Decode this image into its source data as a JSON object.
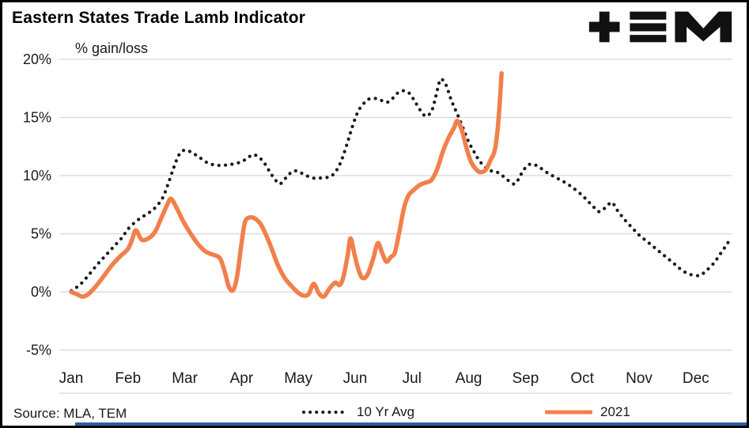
{
  "header": {
    "title": "Eastern States Trade Lamb Indicator",
    "ylabel": "% gain/loss",
    "logo_name": "TEM"
  },
  "footer": {
    "source": "Source: MLA, TEM"
  },
  "colors": {
    "grid": "#d6d6d6",
    "text": "#1a1a1a",
    "avg_line": "#1a1a1a",
    "line_2021": "#f2804c",
    "accent_bar": "#2e5fa3",
    "logo": "#111111"
  },
  "chart_data": {
    "type": "line",
    "title": "Eastern States Trade Lamb Indicator",
    "ylabel": "% gain/loss",
    "xlabel": "",
    "ylim": [
      -5,
      20
    ],
    "yticks": [
      20,
      15,
      10,
      5,
      0,
      -5
    ],
    "ytick_labels": [
      "20%",
      "15%",
      "10%",
      "5%",
      "0%",
      "-5%"
    ],
    "x_categories": [
      "Jan",
      "Feb",
      "Mar",
      "Apr",
      "May",
      "Jun",
      "Jul",
      "Aug",
      "Sep",
      "Oct",
      "Nov",
      "Dec"
    ],
    "grid": true,
    "legend_position": "bottom",
    "x_unit": "month_index_0_is_jan",
    "series": [
      {
        "name": "10 Yr Avg",
        "style": "dotted",
        "color": "#1a1a1a",
        "points": [
          [
            0,
            0.1
          ],
          [
            0.15,
            0.6
          ],
          [
            0.3,
            1.4
          ],
          [
            0.45,
            2.3
          ],
          [
            0.6,
            3.1
          ],
          [
            0.75,
            3.9
          ],
          [
            0.9,
            4.7
          ],
          [
            1.0,
            5.4
          ],
          [
            1.15,
            6.1
          ],
          [
            1.3,
            6.6
          ],
          [
            1.45,
            7.1
          ],
          [
            1.6,
            8.0
          ],
          [
            1.7,
            9.2
          ],
          [
            1.8,
            10.6
          ],
          [
            1.9,
            11.8
          ],
          [
            2.0,
            12.2
          ],
          [
            2.12,
            12.0
          ],
          [
            2.25,
            11.6
          ],
          [
            2.4,
            11.1
          ],
          [
            2.55,
            10.9
          ],
          [
            2.7,
            10.9
          ],
          [
            2.85,
            11.0
          ],
          [
            3.0,
            11.2
          ],
          [
            3.1,
            11.5
          ],
          [
            3.2,
            11.8
          ],
          [
            3.3,
            11.6
          ],
          [
            3.4,
            11.1
          ],
          [
            3.5,
            10.3
          ],
          [
            3.6,
            9.6
          ],
          [
            3.68,
            9.3
          ],
          [
            3.78,
            9.8
          ],
          [
            3.88,
            10.3
          ],
          [
            3.98,
            10.4
          ],
          [
            4.1,
            10.1
          ],
          [
            4.25,
            9.8
          ],
          [
            4.4,
            9.8
          ],
          [
            4.55,
            9.9
          ],
          [
            4.65,
            10.3
          ],
          [
            4.75,
            11.2
          ],
          [
            4.85,
            12.6
          ],
          [
            4.95,
            14.2
          ],
          [
            5.05,
            15.5
          ],
          [
            5.15,
            16.2
          ],
          [
            5.25,
            16.6
          ],
          [
            5.4,
            16.6
          ],
          [
            5.55,
            16.3
          ],
          [
            5.65,
            16.6
          ],
          [
            5.75,
            17.1
          ],
          [
            5.85,
            17.3
          ],
          [
            5.95,
            17.1
          ],
          [
            6.05,
            16.4
          ],
          [
            6.15,
            15.6
          ],
          [
            6.25,
            15.1
          ],
          [
            6.35,
            15.6
          ],
          [
            6.42,
            16.8
          ],
          [
            6.48,
            18.0
          ],
          [
            6.52,
            18.3
          ],
          [
            6.6,
            17.8
          ],
          [
            6.7,
            16.4
          ],
          [
            6.8,
            15.3
          ],
          [
            6.9,
            14.1
          ],
          [
            7.0,
            12.9
          ],
          [
            7.1,
            12.0
          ],
          [
            7.2,
            11.2
          ],
          [
            7.35,
            10.5
          ],
          [
            7.5,
            10.3
          ],
          [
            7.62,
            9.9
          ],
          [
            7.72,
            9.5
          ],
          [
            7.82,
            9.3
          ],
          [
            7.92,
            10.1
          ],
          [
            8.02,
            10.8
          ],
          [
            8.12,
            11.0
          ],
          [
            8.25,
            10.7
          ],
          [
            8.4,
            10.2
          ],
          [
            8.55,
            9.8
          ],
          [
            8.7,
            9.4
          ],
          [
            8.85,
            8.9
          ],
          [
            9.0,
            8.3
          ],
          [
            9.1,
            7.8
          ],
          [
            9.2,
            7.3
          ],
          [
            9.3,
            6.9
          ],
          [
            9.42,
            7.3
          ],
          [
            9.52,
            7.7
          ],
          [
            9.62,
            7.0
          ],
          [
            9.75,
            6.2
          ],
          [
            9.88,
            5.5
          ],
          [
            10.0,
            4.9
          ],
          [
            10.15,
            4.3
          ],
          [
            10.3,
            3.7
          ],
          [
            10.45,
            3.1
          ],
          [
            10.6,
            2.5
          ],
          [
            10.72,
            2.0
          ],
          [
            10.85,
            1.6
          ],
          [
            11.0,
            1.4
          ],
          [
            11.1,
            1.5
          ],
          [
            11.2,
            1.9
          ],
          [
            11.32,
            2.5
          ],
          [
            11.42,
            3.2
          ],
          [
            11.52,
            3.9
          ],
          [
            11.6,
            4.5
          ]
        ]
      },
      {
        "name": "2021",
        "style": "solid",
        "color": "#f2804c",
        "points": [
          [
            0,
            0.0
          ],
          [
            0.1,
            -0.2
          ],
          [
            0.2,
            -0.4
          ],
          [
            0.3,
            -0.2
          ],
          [
            0.42,
            0.4
          ],
          [
            0.55,
            1.2
          ],
          [
            0.7,
            2.2
          ],
          [
            0.85,
            3.0
          ],
          [
            1.0,
            3.7
          ],
          [
            1.08,
            4.6
          ],
          [
            1.14,
            5.3
          ],
          [
            1.24,
            4.5
          ],
          [
            1.36,
            4.6
          ],
          [
            1.48,
            5.2
          ],
          [
            1.6,
            6.5
          ],
          [
            1.7,
            7.6
          ],
          [
            1.76,
            8.0
          ],
          [
            1.86,
            7.2
          ],
          [
            1.96,
            6.2
          ],
          [
            2.08,
            5.2
          ],
          [
            2.22,
            4.2
          ],
          [
            2.36,
            3.5
          ],
          [
            2.5,
            3.2
          ],
          [
            2.62,
            2.9
          ],
          [
            2.7,
            1.8
          ],
          [
            2.78,
            0.4
          ],
          [
            2.86,
            0.2
          ],
          [
            2.93,
            1.6
          ],
          [
            3.0,
            4.2
          ],
          [
            3.06,
            6.0
          ],
          [
            3.14,
            6.4
          ],
          [
            3.24,
            6.3
          ],
          [
            3.34,
            5.8
          ],
          [
            3.44,
            4.8
          ],
          [
            3.54,
            3.6
          ],
          [
            3.64,
            2.3
          ],
          [
            3.76,
            1.2
          ],
          [
            3.88,
            0.5
          ],
          [
            3.98,
            0.0
          ],
          [
            4.08,
            -0.3
          ],
          [
            4.18,
            -0.2
          ],
          [
            4.27,
            0.7
          ],
          [
            4.36,
            -0.1
          ],
          [
            4.45,
            -0.4
          ],
          [
            4.55,
            0.3
          ],
          [
            4.65,
            0.8
          ],
          [
            4.73,
            0.6
          ],
          [
            4.8,
            1.4
          ],
          [
            4.87,
            3.2
          ],
          [
            4.92,
            4.6
          ],
          [
            4.99,
            3.2
          ],
          [
            5.06,
            1.9
          ],
          [
            5.13,
            1.2
          ],
          [
            5.22,
            1.5
          ],
          [
            5.32,
            2.9
          ],
          [
            5.4,
            4.2
          ],
          [
            5.48,
            3.3
          ],
          [
            5.55,
            2.6
          ],
          [
            5.63,
            3.0
          ],
          [
            5.7,
            3.4
          ],
          [
            5.78,
            5.2
          ],
          [
            5.86,
            7.2
          ],
          [
            5.94,
            8.3
          ],
          [
            6.04,
            8.8
          ],
          [
            6.14,
            9.2
          ],
          [
            6.24,
            9.4
          ],
          [
            6.34,
            9.6
          ],
          [
            6.44,
            10.5
          ],
          [
            6.54,
            12.0
          ],
          [
            6.64,
            13.2
          ],
          [
            6.74,
            14.1
          ],
          [
            6.8,
            14.7
          ],
          [
            6.88,
            13.9
          ],
          [
            6.96,
            12.4
          ],
          [
            7.04,
            11.2
          ],
          [
            7.12,
            10.6
          ],
          [
            7.2,
            10.3
          ],
          [
            7.3,
            10.5
          ],
          [
            7.38,
            11.3
          ],
          [
            7.46,
            12.2
          ],
          [
            7.52,
            14.5
          ],
          [
            7.58,
            18.8
          ]
        ]
      }
    ]
  }
}
